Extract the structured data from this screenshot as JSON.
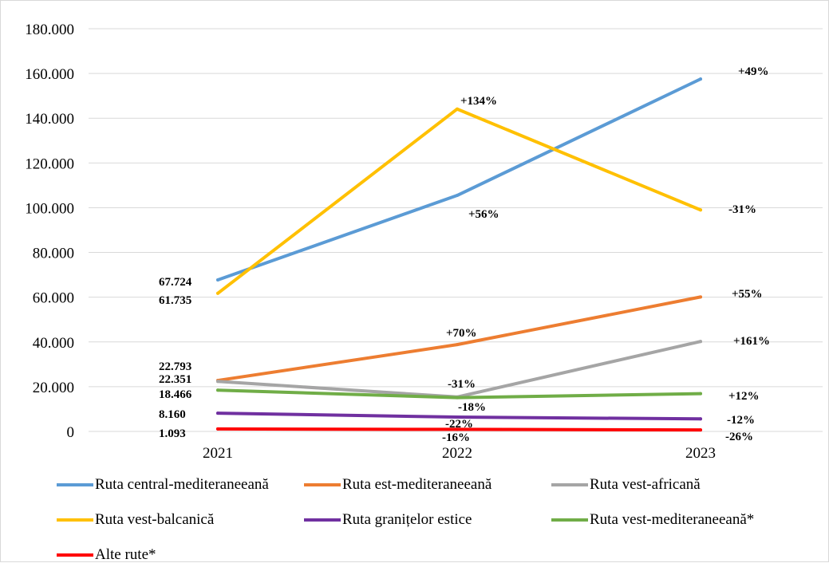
{
  "chart_data": {
    "type": "line",
    "title": "",
    "xlabel": "",
    "ylabel": "",
    "ylim": [
      0,
      180000
    ],
    "yticks": [
      0,
      20000,
      40000,
      60000,
      80000,
      100000,
      120000,
      140000,
      160000,
      180000
    ],
    "ytick_labels": [
      "0",
      "20.000",
      "40.000",
      "60.000",
      "80.000",
      "100.000",
      "120.000",
      "140.000",
      "160.000",
      "180.000"
    ],
    "categories": [
      "2021",
      "2022",
      "2023"
    ],
    "grid": true,
    "legend_position": "bottom",
    "series": [
      {
        "name": "Ruta central-mediteraneeană",
        "color": "#5b9bd5",
        "values": [
          67724,
          105500,
          157500
        ],
        "labels": [
          "67.724",
          "+56%",
          "+49%"
        ]
      },
      {
        "name": "Ruta est-mediteraneeană",
        "color": "#ed7d31",
        "values": [
          22793,
          38800,
          60100
        ],
        "labels": [
          "22.793",
          "+70%",
          "+55%"
        ]
      },
      {
        "name": "Ruta vest-africană",
        "color": "#a5a5a5",
        "values": [
          22351,
          15400,
          40200
        ],
        "labels": [
          "22.351",
          "-31%",
          "+161%"
        ]
      },
      {
        "name": "Ruta vest-balcanică",
        "color": "#ffc000",
        "values": [
          61735,
          144100,
          99000
        ],
        "labels": [
          "61.735",
          "+134%",
          "-31%"
        ]
      },
      {
        "name": "Ruta granițelor estice",
        "color": "#7030a0",
        "values": [
          8160,
          6400,
          5600
        ],
        "labels": [
          "8.160",
          "-22%",
          "-12%"
        ]
      },
      {
        "name": "Ruta vest-mediteraneeană*",
        "color": "#70ad47",
        "values": [
          18466,
          15100,
          16900
        ],
        "labels": [
          "18.466",
          "-18%",
          "+12%"
        ]
      },
      {
        "name": "Alte rute*",
        "color": "#ff0000",
        "values": [
          1093,
          920,
          680
        ],
        "labels": [
          "1.093",
          "-16%",
          "-26%"
        ]
      }
    ]
  }
}
